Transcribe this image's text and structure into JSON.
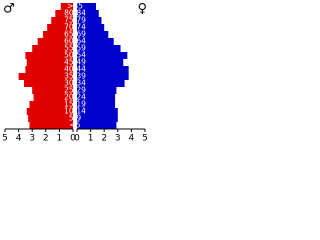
{
  "chart_data": {
    "type": "pyramid",
    "categories": [
      "<5",
      "5-9",
      "10-14",
      "15-19",
      "20-24",
      "25-29",
      "30-34",
      "35-39",
      "40-44",
      "45-49",
      "50-54",
      "55-59",
      "60-64",
      "65-69",
      "70-74",
      "75-79",
      "80-84",
      ">85"
    ],
    "series": [
      {
        "name": "♂",
        "color": "#e00000",
        "values": [
          3.2,
          3.3,
          3.4,
          3.2,
          2.9,
          3.0,
          3.6,
          4.0,
          3.5,
          3.4,
          3.5,
          3.0,
          2.6,
          2.2,
          1.9,
          1.6,
          1.3,
          0.9
        ]
      },
      {
        "name": "♀",
        "color": "#0000cc",
        "values": [
          2.9,
          3.0,
          3.0,
          2.8,
          2.8,
          2.9,
          3.5,
          3.8,
          3.8,
          3.4,
          3.7,
          3.2,
          2.7,
          2.3,
          2.0,
          1.8,
          1.6,
          1.4
        ]
      }
    ],
    "xlim": [
      0,
      5
    ],
    "xticks": [
      0,
      1,
      2,
      3,
      4,
      5
    ]
  }
}
